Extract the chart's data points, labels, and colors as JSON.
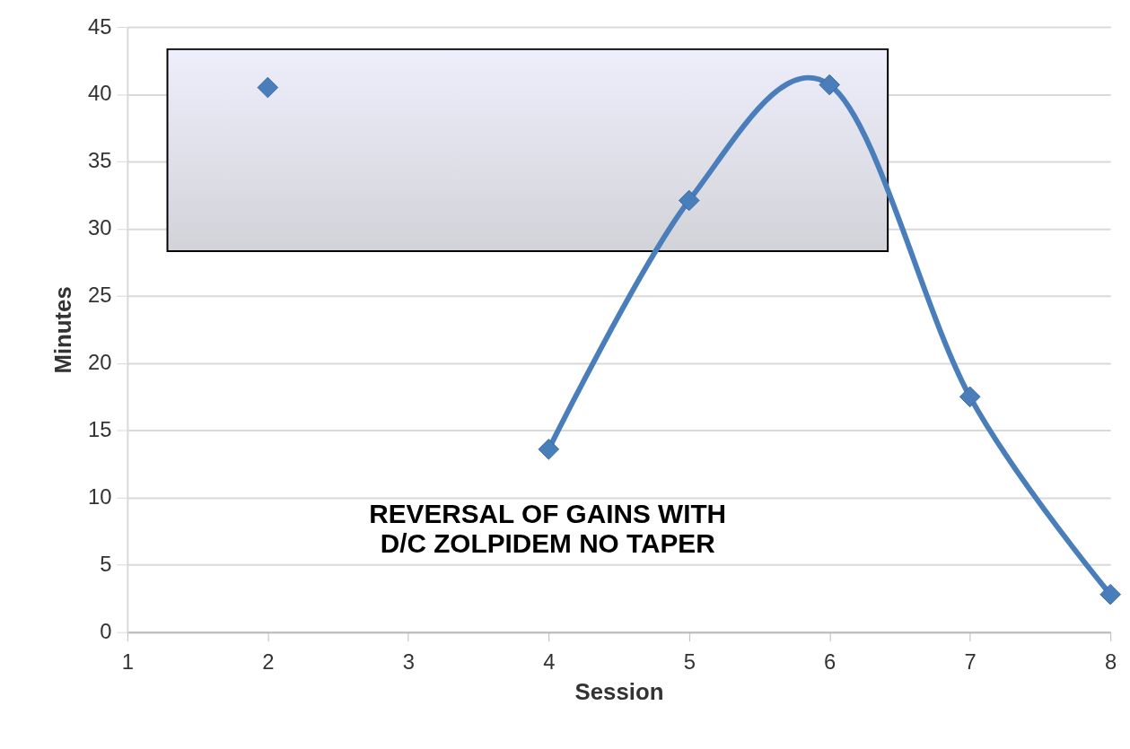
{
  "chart_data": {
    "type": "line",
    "xlabel": "Session",
    "ylabel": "Minutes",
    "x": [
      2,
      3,
      4,
      5,
      6,
      7,
      8
    ],
    "series": [
      {
        "color": "#4a7ebb",
        "values": [
          40.5,
          null,
          13.6,
          32.1,
          40.7,
          17.5,
          2.8
        ]
      }
    ],
    "xlim": [
      1,
      8
    ],
    "xticks": [
      1,
      2,
      3,
      4,
      5,
      6,
      7,
      8
    ],
    "ylim": [
      0,
      45
    ],
    "yticks": [
      0,
      5,
      10,
      15,
      20,
      25,
      30,
      35,
      40,
      45
    ],
    "grid": "y",
    "marker": "diamond",
    "line_style": "solid",
    "legend": false,
    "annotations": [
      "REVERSAL OF GAINS WITH\n D/C ZOLPIDEM NO TAPER"
    ]
  }
}
